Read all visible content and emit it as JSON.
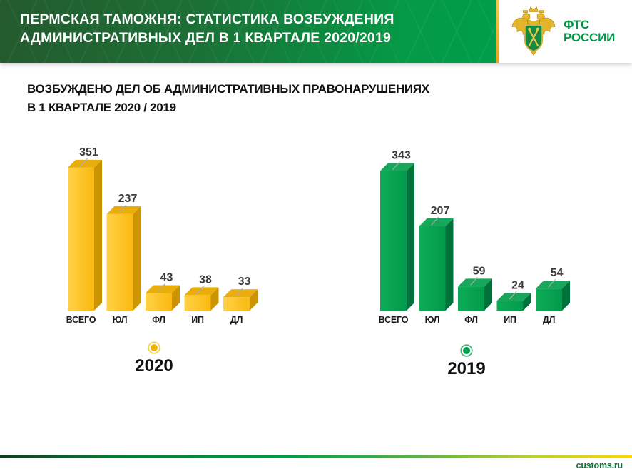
{
  "header": {
    "title_line1": "ПЕРМСКАЯ ТАМОЖНЯ: СТАТИСТИКА ВОЗБУЖДЕНИЯ",
    "title_line2": "АДМИНИСТРАТИВНЫХ ДЕЛ В 1 КВАРТАЛЕ 2020/2019",
    "banner_green_dark": "#245A2E",
    "banner_green_bright": "#009E4A",
    "divider_gold": "#EDBE3B",
    "logo": {
      "org_line1": "ФТС",
      "org_line2": "РОССИИ",
      "text_color": "#009A47",
      "emblem_gold": "#E3B52C",
      "emblem_green": "#168A3F"
    }
  },
  "subtitle": {
    "line1": "ВОЗБУЖДЕНО ДЕЛ ОБ АДМИНИСТРАТИВНЫХ ПРАВОНАРУШЕНИЯХ",
    "line2": "В 1 КВАРТАЛЕ 2020 / 2019"
  },
  "chart_data": [
    {
      "type": "bar",
      "style": "3d-column",
      "title": "2020",
      "categories": [
        "ВСЕГО",
        "ЮЛ",
        "ФЛ",
        "ИП",
        "ДЛ"
      ],
      "values": [
        351,
        237,
        43,
        38,
        33
      ],
      "ylim": [
        0,
        360
      ],
      "grid": false,
      "legend_position": "bottom",
      "legend": {
        "label": "2020",
        "dot_color": "#F2B705",
        "ring_color": "#F7CE4F"
      },
      "colors": {
        "front_light": "#FFD147",
        "front_dark": "#FAB90F",
        "top": "#E9AE0C",
        "side": "#CC9400"
      },
      "value_label_color": "#3C3C3C",
      "category_label_color": "#1A1A1A"
    },
    {
      "type": "bar",
      "style": "3d-column",
      "title": "2019",
      "categories": [
        "ВСЕГО",
        "ЮЛ",
        "ФЛ",
        "ИП",
        "ДЛ"
      ],
      "values": [
        343,
        207,
        59,
        24,
        54
      ],
      "ylim": [
        0,
        360
      ],
      "grid": false,
      "legend_position": "bottom",
      "legend": {
        "label": "2019",
        "dot_color": "#00A04C",
        "ring_color": "#43B275"
      },
      "colors": {
        "front_light": "#0EAC59",
        "front_dark": "#029A4B",
        "top": "#16A75A",
        "side": "#00713A"
      },
      "value_label_color": "#3C3C3C",
      "category_label_color": "#1A1A1A"
    }
  ],
  "footer": {
    "site": "customs.ru",
    "site_color": "#156F3B",
    "line_gradient": [
      "#0E3D1C",
      "#009B45",
      "#7DC242",
      "#FFD500"
    ]
  }
}
